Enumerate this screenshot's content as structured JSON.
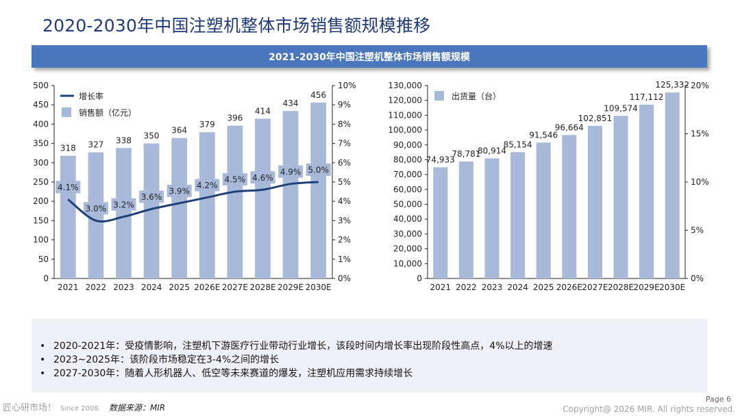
{
  "page": {
    "title": "2020-2030年中国注塑机整体市场销售额规模推移",
    "banner": "2021-2030年中国注塑机整体市场销售额规模"
  },
  "colors": {
    "bar": "#a8b9d9",
    "line": "#1f3f78",
    "banner": "#4a76bd",
    "label_box": "#a8b9d9"
  },
  "chart_data": [
    {
      "type": "bar",
      "categories": [
        "2021",
        "2022",
        "2023",
        "2024",
        "2025",
        "2026E",
        "2027E",
        "2028E",
        "2029E",
        "2030E"
      ],
      "series": [
        {
          "name": "销售额（亿元）",
          "type": "bar",
          "axis": "left",
          "values": [
            318,
            327,
            338,
            350,
            364,
            379,
            396,
            414,
            434,
            456
          ],
          "labels": [
            "318",
            "327",
            "338",
            "350",
            "364",
            "379",
            "396",
            "414",
            "434",
            "456"
          ]
        },
        {
          "name": "增长率",
          "type": "line",
          "axis": "right",
          "values": [
            4.1,
            3.0,
            3.2,
            3.6,
            3.9,
            4.2,
            4.5,
            4.6,
            4.9,
            5.0
          ],
          "labels": [
            "4.1%",
            "3.0%",
            "3.2%",
            "3.6%",
            "3.9%",
            "4.2%",
            "4.5%",
            "4.6%",
            "4.9%",
            "5.0%"
          ]
        }
      ],
      "ylim_left": [
        0,
        500
      ],
      "yticks_left": [
        "0",
        "50",
        "100",
        "150",
        "200",
        "250",
        "300",
        "350",
        "400",
        "450",
        "500"
      ],
      "ylim_right": [
        0,
        10
      ],
      "yticks_right": [
        "0%",
        "1%",
        "2%",
        "3%",
        "4%",
        "5%",
        "6%",
        "7%",
        "8%",
        "9%",
        "10%"
      ],
      "legend": "top-left",
      "grid": false
    },
    {
      "type": "bar",
      "categories": [
        "2021",
        "2022",
        "2023",
        "2024",
        "2025",
        "2026E",
        "2027E",
        "2028E",
        "2029E",
        "2030E"
      ],
      "series": [
        {
          "name": "出货量（台）",
          "type": "bar",
          "axis": "left",
          "values": [
            74933,
            78781,
            80914,
            85154,
            91546,
            96664,
            102851,
            109574,
            117112,
            125332
          ],
          "labels": [
            "74,933",
            "78,781",
            "80,914",
            "85,154",
            "91,546",
            "96,664",
            "102,851",
            "109,574",
            "117,112",
            "125,332"
          ]
        }
      ],
      "ylim_left": [
        0,
        130000
      ],
      "yticks_left": [
        "0",
        "10,000",
        "20,000",
        "30,000",
        "40,000",
        "50,000",
        "60,000",
        "70,000",
        "80,000",
        "90,000",
        "100,000",
        "110,000",
        "120,000",
        "130,000"
      ],
      "ylim_right": [
        0,
        20
      ],
      "yticks_right": [
        "0%",
        "5%",
        "10%",
        "15%",
        "20%"
      ],
      "legend": "top-left",
      "grid": false
    }
  ],
  "notes": [
    "2020-2021年：受疫情影响，注塑机下游医疗行业带动行业增长，该段时间内增长率出现阶段性高点，4%以上的增速",
    "2023~2025年：该阶段市场稳定在3-4%之间的增长",
    "2027-2030年：随着人形机器人、低空等未来赛道的爆发，注塑机应用需求持续增长"
  ],
  "footer": {
    "brand": "匠心研市场！",
    "since": "Since 2008.",
    "source": "数据来源：MIR",
    "page": "Page 6",
    "copyright": "Copyright@ 2026 MIR. All rights reserved."
  }
}
